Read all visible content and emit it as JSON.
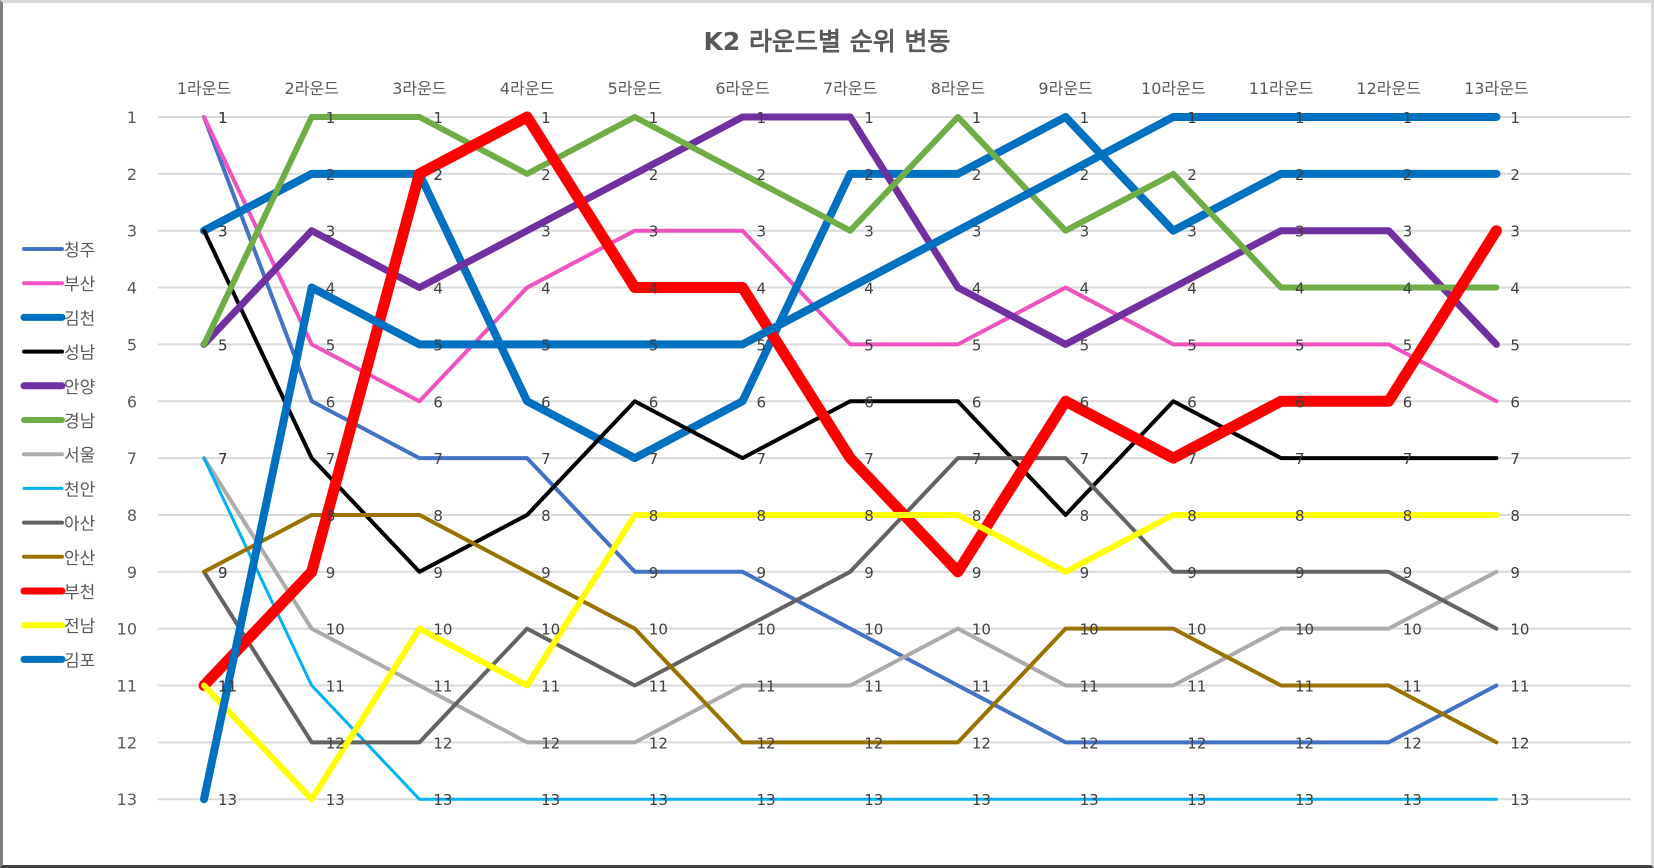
{
  "chart_data": {
    "type": "line",
    "title": "K2 라운드별 순위 변동",
    "xlabel": "",
    "ylabel": "",
    "categories": [
      "1라운드",
      "2라운드",
      "3라운드",
      "4라운드",
      "5라운드",
      "6라운드",
      "7라운드",
      "8라운드",
      "9라운드",
      "10라운드",
      "11라운드",
      "12라운드",
      "13라운드"
    ],
    "y_ticks": [
      "1",
      "2",
      "3",
      "4",
      "5",
      "6",
      "7",
      "8",
      "9",
      "10",
      "11",
      "12",
      "13"
    ],
    "ylim": [
      1,
      13
    ],
    "y_reversed": true,
    "x_axis_position": "top",
    "grid": true,
    "legend_position": "left",
    "data_labels": true,
    "series": [
      {
        "name": "청주",
        "color": "#4472c4",
        "width": 4,
        "values": [
          1,
          6,
          7,
          7,
          9,
          9,
          10,
          11,
          12,
          12,
          12,
          12,
          11
        ]
      },
      {
        "name": "부산",
        "color": "#f052bf",
        "width": 4,
        "values": [
          1,
          5,
          6,
          4,
          3,
          3,
          5,
          5,
          4,
          5,
          5,
          5,
          6
        ]
      },
      {
        "name": "김천",
        "color": "#0070c0",
        "width": 8,
        "values": [
          3,
          2,
          2,
          6,
          7,
          6,
          2,
          2,
          1,
          3,
          2,
          2,
          2
        ]
      },
      {
        "name": "성남",
        "color": "#000000",
        "width": 4,
        "values": [
          3,
          7,
          9,
          8,
          6,
          7,
          6,
          6,
          8,
          6,
          7,
          7,
          7
        ]
      },
      {
        "name": "안양",
        "color": "#7030a0",
        "width": 7,
        "values": [
          5,
          3,
          4,
          3,
          2,
          1,
          1,
          4,
          5,
          4,
          3,
          3,
          5
        ]
      },
      {
        "name": "경남",
        "color": "#70ad47",
        "width": 6,
        "values": [
          5,
          1,
          1,
          2,
          1,
          2,
          3,
          1,
          3,
          2,
          4,
          4,
          4
        ]
      },
      {
        "name": "서울",
        "color": "#aeaaaa",
        "width": 4,
        "values": [
          7,
          10,
          11,
          12,
          12,
          11,
          11,
          10,
          11,
          11,
          10,
          10,
          9
        ]
      },
      {
        "name": "천안",
        "color": "#00b0f0",
        "width": 3,
        "values": [
          7,
          11,
          13,
          13,
          13,
          13,
          13,
          13,
          13,
          13,
          13,
          13,
          13
        ]
      },
      {
        "name": "아산",
        "color": "#636363",
        "width": 4,
        "values": [
          9,
          12,
          12,
          10,
          11,
          10,
          9,
          7,
          7,
          9,
          9,
          9,
          10
        ]
      },
      {
        "name": "안산",
        "color": "#997300",
        "width": 4,
        "values": [
          9,
          8,
          8,
          9,
          10,
          12,
          12,
          12,
          10,
          10,
          11,
          11,
          12
        ]
      },
      {
        "name": "부천",
        "color": "#ff0000",
        "width": 11,
        "values": [
          11,
          9,
          2,
          1,
          4,
          4,
          7,
          9,
          6,
          7,
          6,
          6,
          3
        ]
      },
      {
        "name": "전남",
        "color": "#ffff00",
        "width": 6,
        "values": [
          11,
          13,
          10,
          11,
          8,
          8,
          8,
          8,
          9,
          8,
          8,
          8,
          8
        ]
      },
      {
        "name": "김포",
        "color": "#0070c0",
        "width": 8,
        "values": [
          13,
          4,
          5,
          5,
          5,
          5,
          4,
          3,
          2,
          1,
          1,
          1,
          1
        ]
      }
    ]
  }
}
